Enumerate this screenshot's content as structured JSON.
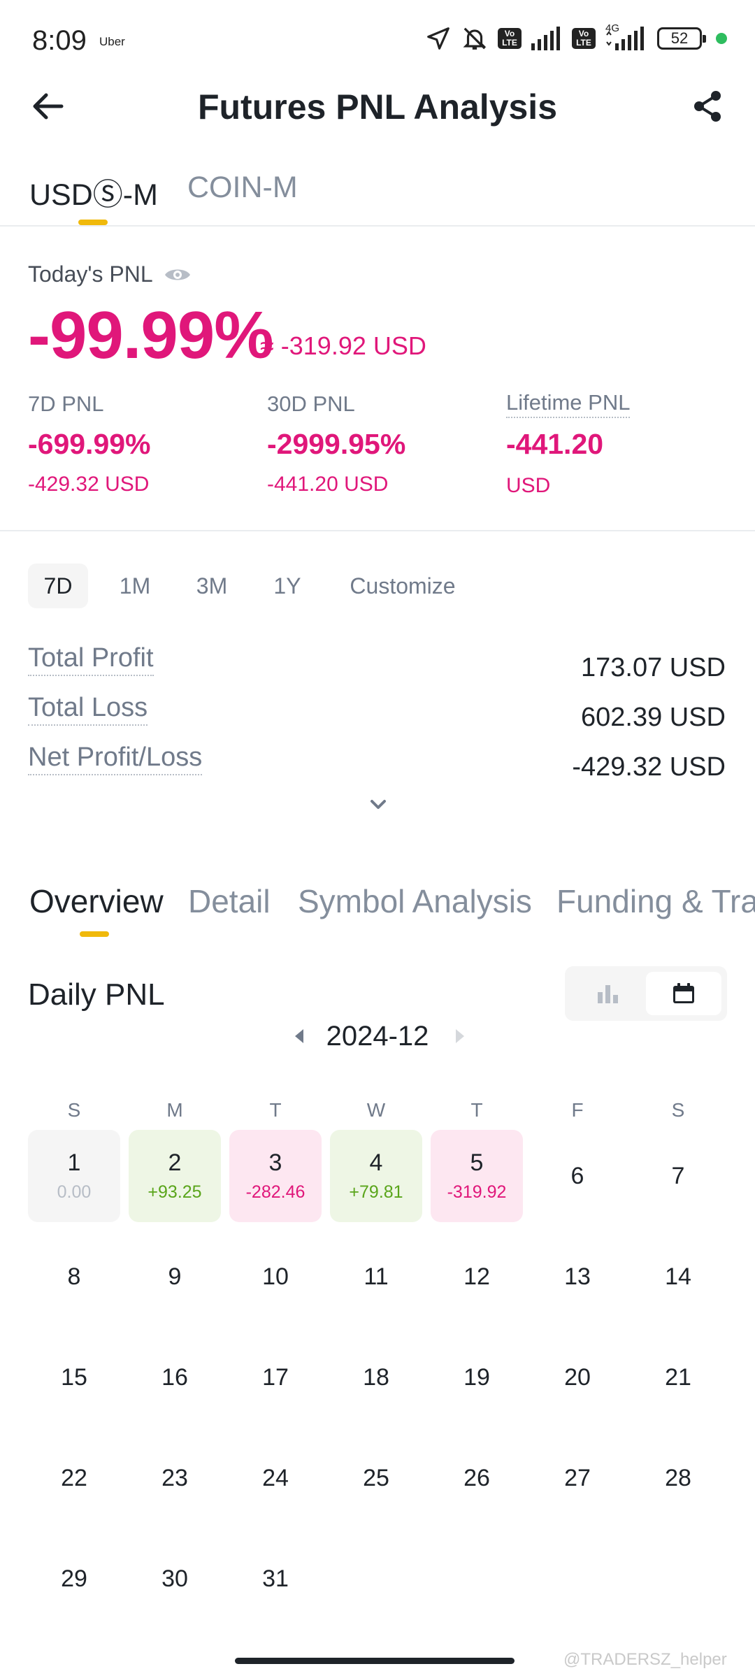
{
  "status_bar": {
    "time": "8:09",
    "app": "Uber",
    "battery": "52",
    "network": "4G"
  },
  "header": {
    "title": "Futures PNL Analysis"
  },
  "top_tabs": [
    {
      "label": "USDⓈ-M",
      "active": true
    },
    {
      "label": "COIN-M",
      "active": false
    }
  ],
  "today": {
    "label": "Today's PNL",
    "percent": "-99.99%",
    "approx_usd": "≈ -319.92 USD"
  },
  "summary": [
    {
      "label": "7D PNL",
      "percent": "-699.99%",
      "usd": "-429.32 USD"
    },
    {
      "label": "30D PNL",
      "percent": "-2999.95%",
      "usd": "-441.20 USD"
    },
    {
      "label": "Lifetime PNL",
      "value": "-441.20",
      "unit": "USD"
    }
  ],
  "ranges": [
    "7D",
    "1M",
    "3M",
    "1Y",
    "Customize"
  ],
  "active_range": "7D",
  "stats": [
    {
      "label": "Total Profit",
      "value": "173.07 USD"
    },
    {
      "label": "Total Loss",
      "value": "602.39 USD"
    },
    {
      "label": "Net Profit/Loss",
      "value": "-429.32 USD"
    }
  ],
  "section_tabs": [
    "Overview",
    "Detail",
    "Symbol Analysis",
    "Funding & Tra"
  ],
  "daily": {
    "title": "Daily PNL",
    "month": "2024-12"
  },
  "weekdays": [
    "S",
    "M",
    "T",
    "W",
    "T",
    "F",
    "S"
  ],
  "calendar": {
    "first_weekday": 0,
    "days_in_month": 31,
    "pnl_days": [
      {
        "day": "1",
        "value": "0.00",
        "type": "neutral"
      },
      {
        "day": "2",
        "value": "+93.25",
        "type": "gain"
      },
      {
        "day": "3",
        "value": "-282.46",
        "type": "loss"
      },
      {
        "day": "4",
        "value": "+79.81",
        "type": "gain"
      },
      {
        "day": "5",
        "value": "-319.92",
        "type": "loss"
      }
    ]
  },
  "watermark": "@TRADERSZ_helper",
  "colors": {
    "accent": "#f0b90b",
    "loss": "#e0177a",
    "gain": "#5aa51b"
  }
}
